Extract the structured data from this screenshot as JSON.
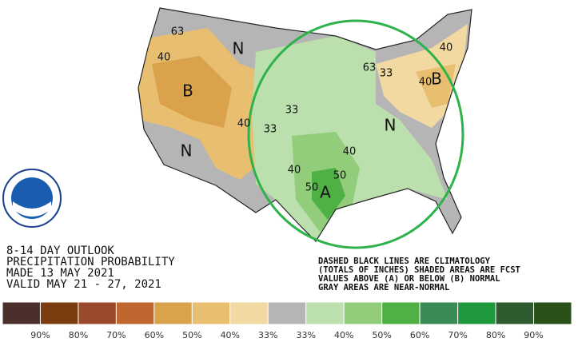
{
  "title_lines": [
    "8-14 DAY OUTLOOK",
    "PRECIPITATION PROBABILITY",
    "MADE  13 MAY 2021",
    "VALID  MAY 21 - 27, 2021"
  ],
  "note_lines": [
    "DASHED BLACK LINES ARE CLIMATOLOGY",
    "(TOTALS OF INCHES) SHADED AREAS ARE FCST",
    "VALUES ABOVE (A) OR BELOW (B) NORMAL",
    "GRAY AREAS ARE NEAR-NORMAL"
  ],
  "legend": {
    "colors": [
      "#4b2f2b",
      "#7b3c10",
      "#9a4a2c",
      "#c0672f",
      "#d9a24b",
      "#e8bf70",
      "#f1d9a1",
      "#b5b5b5",
      "#bcdfae",
      "#92cd7b",
      "#4fb043",
      "#3a8a55",
      "#1e9a3c",
      "#2f5b31",
      "#2b5119"
    ],
    "labels": [
      "90%",
      "80%",
      "70%",
      "60%",
      "50%",
      "40%",
      "33%",
      "33%",
      "40%",
      "50%",
      "60%",
      "70%",
      "80%",
      "90%"
    ]
  },
  "map_labels": [
    "63",
    "40",
    "B",
    "N",
    "40",
    "N",
    "33",
    "33",
    "40",
    "40",
    "50",
    "50",
    "A",
    "63",
    "33",
    "40",
    "B",
    "N",
    "40"
  ]
}
